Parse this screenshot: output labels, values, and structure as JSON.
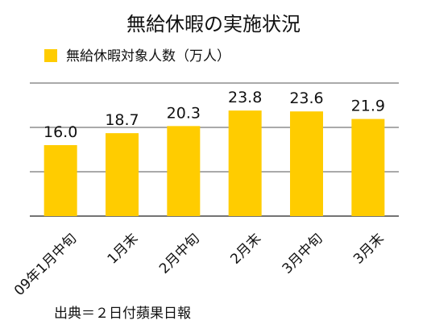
{
  "chart_data": {
    "type": "bar",
    "title": "無給休暇の実施状況",
    "legend": {
      "label": "無給休暇対象人数（万人）",
      "placement": "top-left"
    },
    "categories": [
      "09年1月中旬",
      "1月末",
      "2月中旬",
      "2月末",
      "3月中旬",
      "3月末"
    ],
    "series": [
      {
        "name": "無給休暇対象人数（万人）",
        "values": [
          16.0,
          18.7,
          20.3,
          23.8,
          23.6,
          21.9
        ],
        "labels": [
          "16.0",
          "18.7",
          "20.3",
          "23.8",
          "23.6",
          "21.9"
        ]
      }
    ],
    "ylim": [
      0,
      30
    ],
    "y_gridlines": [
      10,
      20,
      30
    ],
    "grid": true,
    "colors": {
      "bar": "#FFCC00",
      "grid": "#555555",
      "text": "#111111"
    }
  },
  "footer": {
    "source": "出典＝２日付蘋果日報"
  }
}
